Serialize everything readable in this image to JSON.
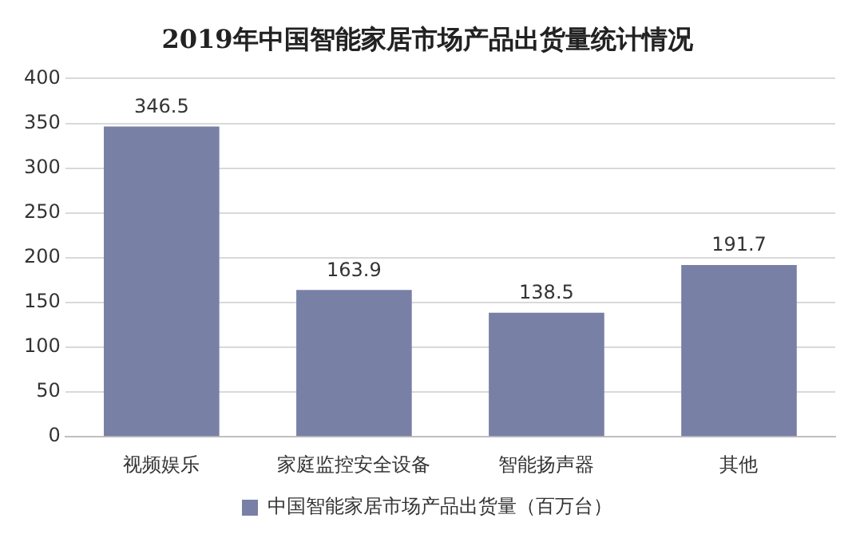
{
  "chart_data": {
    "type": "bar",
    "title": "2019年中国智能家居市场产品出货量统计情况",
    "categories": [
      "视频娱乐",
      "家庭监控安全设备",
      "智能扬声器",
      "其他"
    ],
    "series": [
      {
        "name": "中国智能家居市场产品出货量（百万台）",
        "color": "#7880a6",
        "values": [
          346.5,
          163.9,
          138.5,
          191.7
        ]
      }
    ],
    "ylim": [
      0,
      400
    ],
    "yticks": [
      0,
      50,
      100,
      150,
      200,
      250,
      300,
      350,
      400
    ],
    "grid": "y",
    "legend": "bottom",
    "data_labels": true
  }
}
